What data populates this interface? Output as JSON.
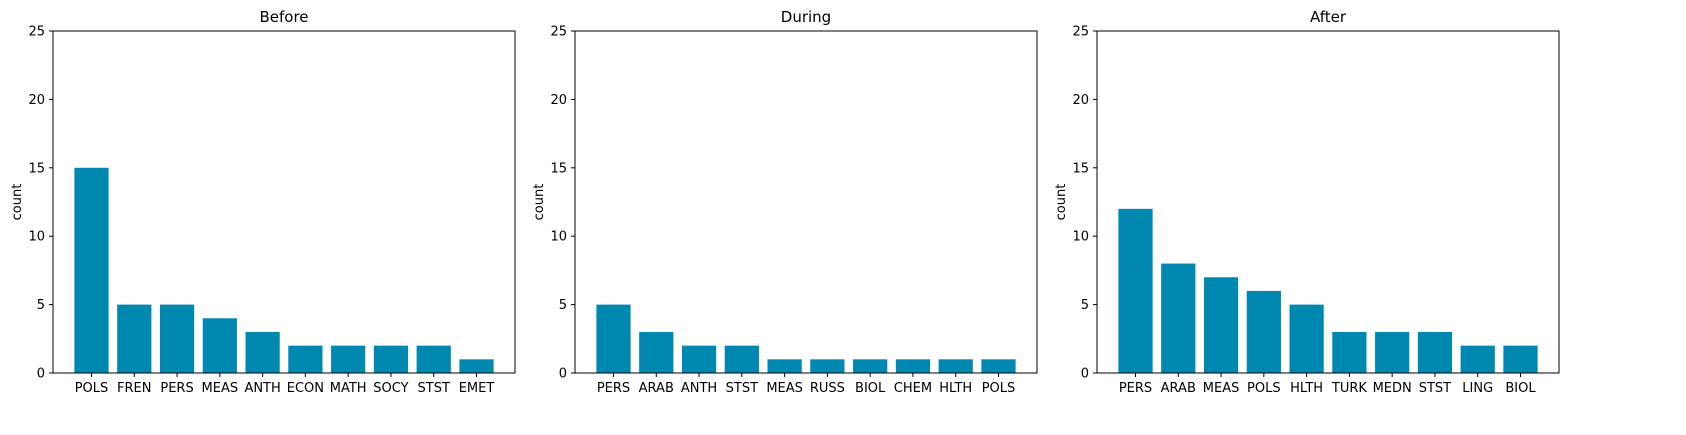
{
  "chart_data": [
    {
      "type": "bar",
      "title": "Before",
      "xlabel": "",
      "ylabel": "count",
      "ylim": [
        0,
        25
      ],
      "yticks": [
        0,
        5,
        10,
        15,
        20,
        25
      ],
      "categories": [
        "POLS",
        "FREN",
        "PERS",
        "MEAS",
        "ANTH",
        "ECON",
        "MATH",
        "SOCY",
        "STST",
        "EMET"
      ],
      "values": [
        15,
        5,
        5,
        4,
        3,
        2,
        2,
        2,
        2,
        1
      ]
    },
    {
      "type": "bar",
      "title": "During",
      "xlabel": "",
      "ylabel": "count",
      "ylim": [
        0,
        25
      ],
      "yticks": [
        0,
        5,
        10,
        15,
        20,
        25
      ],
      "categories": [
        "PERS",
        "ARAB",
        "ANTH",
        "STST",
        "MEAS",
        "RUSS",
        "BIOL",
        "CHEM",
        "HLTH",
        "POLS"
      ],
      "values": [
        5,
        3,
        2,
        2,
        1,
        1,
        1,
        1,
        1,
        1
      ]
    },
    {
      "type": "bar",
      "title": "After",
      "xlabel": "",
      "ylabel": "count",
      "ylim": [
        0,
        25
      ],
      "yticks": [
        0,
        5,
        10,
        15,
        20,
        25
      ],
      "categories": [
        "PERS",
        "ARAB",
        "MEAS",
        "POLS",
        "HLTH",
        "TURK",
        "MEDN",
        "STST",
        "LING",
        "BIOL"
      ],
      "values": [
        12,
        8,
        7,
        6,
        5,
        3,
        3,
        3,
        2,
        2
      ]
    }
  ],
  "colors": {
    "bar": "#0088b0",
    "axis": "#000000"
  },
  "grid": false,
  "legend": "none"
}
